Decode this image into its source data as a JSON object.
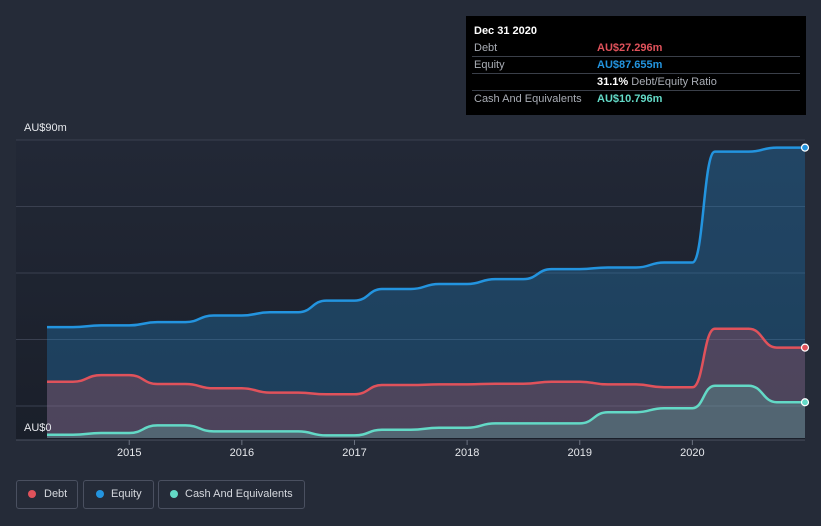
{
  "tooltip": {
    "date": "Dec 31 2020",
    "rows": [
      {
        "label": "Debt",
        "value": "AU$27.296m",
        "color": "#e0525b"
      },
      {
        "label": "Equity",
        "value": "AU$87.655m",
        "color": "#2394df"
      },
      {
        "label": "",
        "value": "31.1%",
        "suffix": "Debt/Equity Ratio",
        "color": "#ffffff"
      },
      {
        "label": "Cash And Equivalents",
        "value": "AU$10.796m",
        "color": "#63d9c6"
      }
    ]
  },
  "legend": [
    {
      "label": "Debt",
      "color": "#e0525b"
    },
    {
      "label": "Equity",
      "color": "#2394df"
    },
    {
      "label": "Cash And Equivalents",
      "color": "#63d9c6"
    }
  ],
  "chart_data": {
    "type": "area",
    "title": "",
    "ylabel": "",
    "xlabel": "",
    "ylim": [
      0,
      90
    ],
    "y_tick_labels": [
      "AU$90m",
      "AU$0"
    ],
    "x_tick_labels": [
      "2015",
      "2016",
      "2017",
      "2018",
      "2019",
      "2020"
    ],
    "x_ticks": [
      2015,
      2016,
      2017,
      2018,
      2019,
      2020
    ],
    "xlim": [
      2014.27,
      2021.0
    ],
    "series": [
      {
        "name": "Equity",
        "color": "#2394df",
        "points": [
          [
            2014.27,
            33.5
          ],
          [
            2014.5,
            33.5
          ],
          [
            2014.75,
            34
          ],
          [
            2015.0,
            34
          ],
          [
            2015.25,
            35
          ],
          [
            2015.5,
            35
          ],
          [
            2015.75,
            37
          ],
          [
            2016.0,
            37
          ],
          [
            2016.25,
            38
          ],
          [
            2016.5,
            38
          ],
          [
            2016.75,
            41.5
          ],
          [
            2017.0,
            41.5
          ],
          [
            2017.25,
            45
          ],
          [
            2017.5,
            45
          ],
          [
            2017.75,
            46.5
          ],
          [
            2018.0,
            46.5
          ],
          [
            2018.25,
            48
          ],
          [
            2018.5,
            48
          ],
          [
            2018.75,
            51
          ],
          [
            2019.0,
            51
          ],
          [
            2019.25,
            51.5
          ],
          [
            2019.5,
            51.5
          ],
          [
            2019.75,
            53
          ],
          [
            2020.0,
            53
          ],
          [
            2020.2,
            86.5
          ],
          [
            2020.5,
            86.5
          ],
          [
            2020.75,
            87.7
          ],
          [
            2021.0,
            87.7
          ]
        ]
      },
      {
        "name": "Debt",
        "color": "#e0525b",
        "points": [
          [
            2014.27,
            17
          ],
          [
            2014.5,
            17
          ],
          [
            2014.75,
            19
          ],
          [
            2015.0,
            19
          ],
          [
            2015.25,
            16.3
          ],
          [
            2015.5,
            16.3
          ],
          [
            2015.75,
            15
          ],
          [
            2016.0,
            15
          ],
          [
            2016.25,
            13.7
          ],
          [
            2016.5,
            13.7
          ],
          [
            2016.75,
            13.2
          ],
          [
            2017.0,
            13.2
          ],
          [
            2017.25,
            16
          ],
          [
            2017.5,
            16
          ],
          [
            2017.75,
            16.2
          ],
          [
            2018.0,
            16.2
          ],
          [
            2018.25,
            16.4
          ],
          [
            2018.5,
            16.4
          ],
          [
            2018.75,
            17
          ],
          [
            2019.0,
            17
          ],
          [
            2019.25,
            16.2
          ],
          [
            2019.5,
            16.2
          ],
          [
            2019.75,
            15.3
          ],
          [
            2020.0,
            15.3
          ],
          [
            2020.2,
            33
          ],
          [
            2020.5,
            33
          ],
          [
            2020.75,
            27.3
          ],
          [
            2021.0,
            27.3
          ]
        ]
      },
      {
        "name": "Cash And Equivalents",
        "color": "#63d9c6",
        "points": [
          [
            2014.27,
            1
          ],
          [
            2014.5,
            1
          ],
          [
            2014.75,
            1.5
          ],
          [
            2015.0,
            1.5
          ],
          [
            2015.25,
            3.8
          ],
          [
            2015.5,
            3.8
          ],
          [
            2015.75,
            2
          ],
          [
            2016.0,
            2
          ],
          [
            2016.25,
            2
          ],
          [
            2016.5,
            2
          ],
          [
            2016.75,
            0.8
          ],
          [
            2017.0,
            0.8
          ],
          [
            2017.25,
            2.5
          ],
          [
            2017.5,
            2.5
          ],
          [
            2017.75,
            3.1
          ],
          [
            2018.0,
            3.1
          ],
          [
            2018.25,
            4.4
          ],
          [
            2018.5,
            4.4
          ],
          [
            2018.75,
            4.4
          ],
          [
            2019.0,
            4.4
          ],
          [
            2019.25,
            7.8
          ],
          [
            2019.5,
            7.8
          ],
          [
            2019.75,
            9
          ],
          [
            2020.0,
            9
          ],
          [
            2020.2,
            15.8
          ],
          [
            2020.5,
            15.8
          ],
          [
            2020.75,
            10.8
          ],
          [
            2021.0,
            10.8
          ]
        ]
      }
    ]
  }
}
